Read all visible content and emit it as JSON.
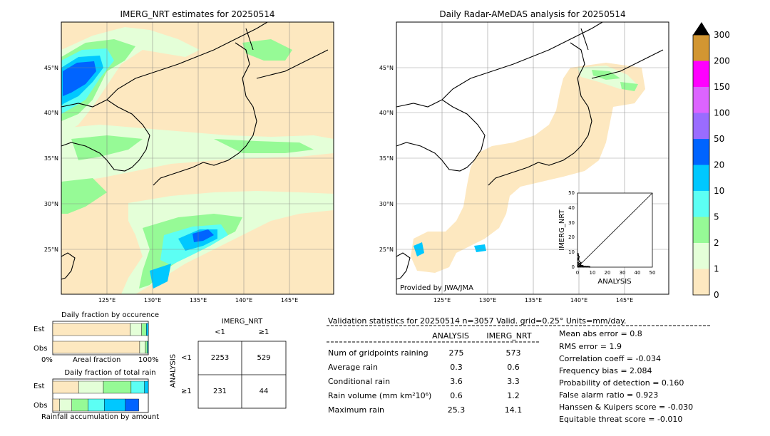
{
  "left_map": {
    "title": "IMERG_NRT estimates for 20250514",
    "lat_labels": [
      "45°N",
      "40°N",
      "35°N",
      "30°N",
      "25°N"
    ],
    "lon_labels": [
      "125°E",
      "130°E",
      "135°E",
      "140°E",
      "145°E"
    ]
  },
  "right_map": {
    "title": "Daily Radar-AMeDAS analysis for 20250514",
    "lat_labels": [
      "45°N",
      "40°N",
      "35°N",
      "30°N",
      "25°N"
    ],
    "lon_labels": [
      "125°E",
      "130°E",
      "135°E",
      "140°E",
      "145°E"
    ],
    "credit": "Provided by JWA/JMA"
  },
  "colorbar": {
    "labels": [
      "0",
      "1",
      "2",
      "5",
      "10",
      "20",
      "50",
      "100",
      "150",
      "200",
      "300"
    ],
    "colors": [
      "#fde8c0",
      "#e4ffd8",
      "#96fa96",
      "#5cfff4",
      "#00c8ff",
      "#0064ff",
      "#9a6cff",
      "#dc64ff",
      "#ff00ff",
      "#d29632"
    ]
  },
  "scatter": {
    "xlabel": "ANALYSIS",
    "ylabel": "IMERG_NRT",
    "ticks": [
      "0",
      "10",
      "20",
      "30",
      "40",
      "50"
    ]
  },
  "occurrence": {
    "title": "Daily fraction by occurence",
    "row_est": "Est",
    "row_obs": "Obs",
    "axis_left": "0%",
    "axis_mid": "Areal fraction",
    "axis_right": "100%"
  },
  "total_rain": {
    "title": "Daily fraction of total rain",
    "row_est": "Est",
    "row_obs": "Obs",
    "caption": "Rainfall accumulation by amount"
  },
  "contingency": {
    "col_title": "IMERG_NRT",
    "col_lt": "<1",
    "col_ge": "≥1",
    "row_title": "ANALYSIS",
    "row_lt": "<1",
    "row_ge": "≥1",
    "a": "2253",
    "b": "529",
    "c": "231",
    "d": "44"
  },
  "validation": {
    "header": "Validation statistics for 20250514  n=3057 Valid. grid=0.25° Units=mm/day.",
    "col_analysis": "ANALYSIS",
    "col_imerg": "IMERG_NRT",
    "rows": [
      {
        "label": "Num of gridpoints raining",
        "analysis": "275",
        "imerg": "573"
      },
      {
        "label": "Average rain",
        "analysis": "0.3",
        "imerg": "0.6"
      },
      {
        "label": "Conditional rain",
        "analysis": "3.6",
        "imerg": "3.3"
      },
      {
        "label": "Rain volume (mm km²10⁶)",
        "analysis": "0.6",
        "imerg": "1.2"
      },
      {
        "label": "Maximum rain",
        "analysis": "25.3",
        "imerg": "14.1"
      }
    ],
    "scores": [
      "Mean abs error =    0.8",
      "RMS error =    1.9",
      "Correlation coeff = -0.034",
      "Frequency bias =  2.084",
      "Probability of detection =  0.160",
      "False alarm ratio =  0.923",
      "Hanssen & Kuipers score = -0.030",
      "Equitable threat score = -0.010"
    ]
  },
  "chart_data": [
    {
      "type": "scatter",
      "xlabel": "ANALYSIS",
      "ylabel": "IMERG_NRT",
      "xlim": [
        0,
        50
      ],
      "ylim": [
        0,
        50
      ],
      "points": [
        [
          0.5,
          0.3
        ],
        [
          1,
          0.5
        ],
        [
          0.3,
          1.2
        ],
        [
          1.5,
          0.8
        ],
        [
          2,
          0.4
        ],
        [
          0.8,
          2
        ],
        [
          2.5,
          1
        ],
        [
          3,
          0.6
        ],
        [
          0.4,
          3
        ],
        [
          1.2,
          4
        ],
        [
          0.6,
          5
        ],
        [
          3.5,
          0.9
        ],
        [
          4,
          0.3
        ],
        [
          0.7,
          6
        ],
        [
          1,
          7
        ],
        [
          2,
          1.5
        ],
        [
          5,
          0.5
        ],
        [
          6,
          0.3
        ],
        [
          0.5,
          8
        ],
        [
          1.5,
          2.5
        ],
        [
          7,
          0.4
        ],
        [
          8,
          0.2
        ],
        [
          0.3,
          9
        ],
        [
          2.2,
          3
        ]
      ]
    },
    {
      "type": "bar",
      "title": "Daily fraction by occurence",
      "categories": [
        "Est",
        "Obs"
      ],
      "series": [
        {
          "values": [
            0.81,
            0.91
          ]
        },
        {
          "values": [
            0.12,
            0.06
          ]
        },
        {
          "values": [
            0.05,
            0.02
          ]
        },
        {
          "values": [
            0.02,
            0.01
          ]
        }
      ]
    },
    {
      "type": "bar",
      "title": "Daily fraction of total rain",
      "categories": [
        "Est",
        "Obs"
      ],
      "series": [
        {
          "values": [
            0.27,
            0.07
          ]
        },
        {
          "values": [
            0.26,
            0.13
          ]
        },
        {
          "values": [
            0.29,
            0.17
          ]
        },
        {
          "values": [
            0.14,
            0.17
          ]
        },
        {
          "values": [
            0.04,
            0.22
          ]
        },
        {
          "values": [
            0.0,
            0.14
          ]
        }
      ]
    }
  ]
}
